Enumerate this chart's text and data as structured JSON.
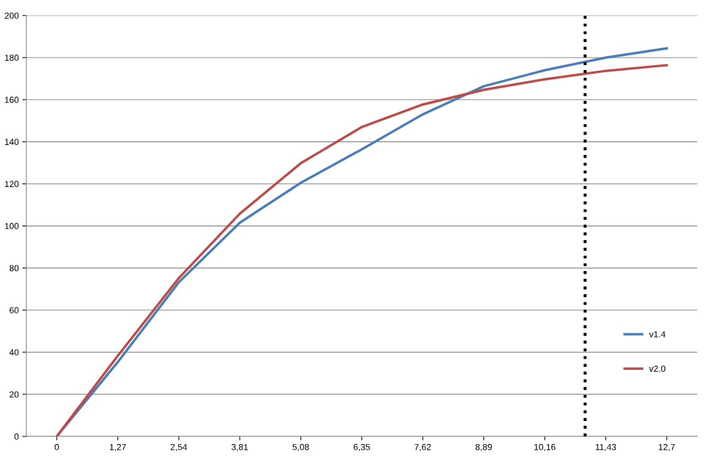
{
  "chart_data": {
    "type": "line",
    "x": [
      0,
      1.27,
      2.54,
      3.81,
      5.08,
      6.35,
      7.62,
      8.89,
      10.16,
      11.43,
      12.7
    ],
    "series": [
      {
        "name": "v1.4",
        "color": "#4a7ebb",
        "values": [
          0,
          35.3,
          73.2,
          101.5,
          120.5,
          136.4,
          153,
          166.4,
          174,
          180,
          184.4
        ]
      },
      {
        "name": "v2.0",
        "color": "#be4b48",
        "values": [
          0,
          38.3,
          75.2,
          105.8,
          129.8,
          147,
          157.7,
          164.7,
          169.7,
          173.7,
          176.4
        ]
      }
    ],
    "xlim": [
      -0.635,
      13.335
    ],
    "xticks": [
      0,
      {
        "value": 1.27,
        "label": "1,27"
      },
      {
        "value": 2.54,
        "label": "2,54"
      },
      {
        "value": 3.81,
        "label": "3,81"
      },
      {
        "value": 5.08,
        "label": "5,08"
      },
      {
        "value": 6.35,
        "label": "6,35"
      },
      {
        "value": 7.62,
        "label": "7,62"
      },
      {
        "value": 8.89,
        "label": "8,89"
      },
      {
        "value": 10.16,
        "label": "10,16"
      },
      {
        "value": 11.43,
        "label": "11,43"
      },
      {
        "value": 12.7,
        "label": "12,7"
      }
    ],
    "ylim": [
      0,
      200
    ],
    "yticks": [
      0,
      20,
      40,
      60,
      80,
      100,
      120,
      140,
      160,
      180,
      200
    ],
    "grid": "y",
    "legend": "right",
    "marker": "none",
    "line_style": "solid",
    "ref_lines": [
      {
        "axis": "x",
        "value": 11,
        "color": "#000000",
        "line_style": "dotted"
      }
    ]
  }
}
